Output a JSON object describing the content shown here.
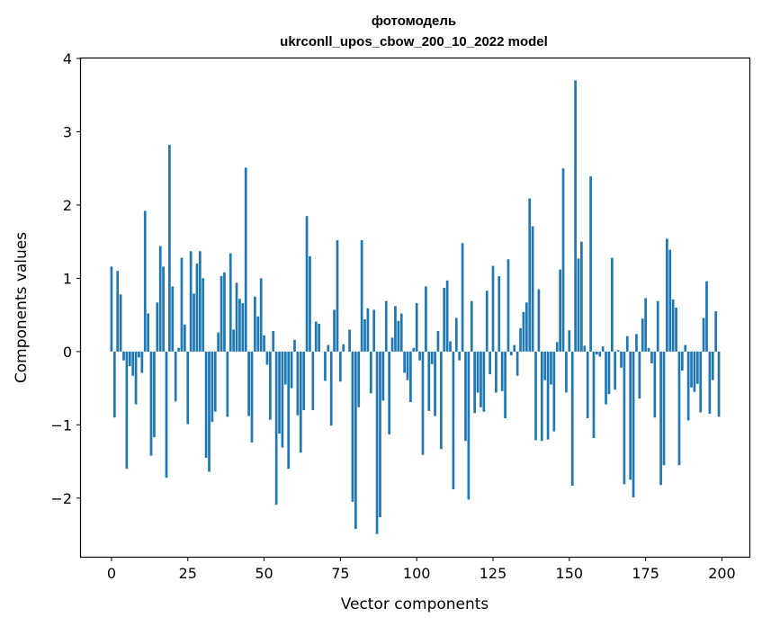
{
  "chart_data": {
    "type": "bar",
    "title": "фотомодель",
    "subtitle": "ukrconll_upos_cbow_200_10_2022 model",
    "xlabel": "Vector components",
    "ylabel": "Components values",
    "xlim": [
      -10,
      209
    ],
    "ylim": [
      -2.8,
      4.0
    ],
    "xticks": [
      0,
      25,
      50,
      75,
      100,
      125,
      150,
      175,
      200
    ],
    "yticks": [
      -2,
      -1,
      0,
      1,
      2,
      3,
      4
    ],
    "xtick_labels": [
      "0",
      "25",
      "50",
      "75",
      "100",
      "125",
      "150",
      "175",
      "200"
    ],
    "ytick_labels": [
      "−2",
      "−1",
      "0",
      "1",
      "2",
      "3",
      "4"
    ],
    "grid": false,
    "bar_color": "#1f77b4",
    "values": [
      1.16,
      -0.9,
      1.1,
      0.78,
      -0.12,
      -1.6,
      -0.2,
      -0.33,
      -0.72,
      -0.08,
      -0.29,
      1.92,
      0.52,
      -1.42,
      -1.17,
      0.67,
      1.44,
      1.16,
      -1.72,
      2.82,
      0.89,
      -0.68,
      0.05,
      1.28,
      0.37,
      -0.99,
      1.37,
      0.79,
      1.2,
      1.37,
      1.0,
      -1.45,
      -1.64,
      -0.96,
      -0.82,
      0.26,
      1.03,
      1.08,
      -0.89,
      1.34,
      0.3,
      0.94,
      0.72,
      0.66,
      2.51,
      -0.88,
      -1.24,
      0.75,
      0.48,
      1.0,
      0.22,
      -0.18,
      -0.93,
      0.28,
      -2.09,
      -1.12,
      -1.31,
      -0.45,
      -1.6,
      -0.5,
      0.16,
      -0.87,
      -1.38,
      -0.8,
      1.85,
      1.3,
      -0.8,
      0.41,
      0.38,
      0.0,
      -0.4,
      0.09,
      -1.01,
      0.57,
      1.52,
      -0.41,
      0.1,
      0.0,
      0.3,
      -2.05,
      -2.42,
      -0.76,
      1.52,
      0.44,
      0.59,
      -0.57,
      0.57,
      -2.49,
      -2.26,
      -0.67,
      0.69,
      -1.13,
      0.19,
      0.62,
      0.42,
      0.52,
      -0.29,
      -0.39,
      -0.69,
      0.05,
      0.66,
      -0.12,
      -1.41,
      0.89,
      -0.81,
      -0.17,
      -0.88,
      0.28,
      -1.33,
      0.87,
      0.97,
      0.14,
      -1.88,
      0.46,
      -0.12,
      1.48,
      -1.22,
      -2.02,
      0.69,
      -0.84,
      -0.56,
      -0.76,
      -0.82,
      0.83,
      -0.31,
      1.17,
      -0.56,
      1.03,
      -0.54,
      -0.91,
      1.26,
      -0.05,
      0.09,
      -0.33,
      0.32,
      0.54,
      0.67,
      2.09,
      1.71,
      -1.21,
      0.85,
      -1.22,
      -0.39,
      -1.2,
      -0.45,
      -1.09,
      0.13,
      1.12,
      2.5,
      -0.56,
      0.29,
      -1.83,
      3.7,
      1.27,
      1.5,
      0.08,
      -0.91,
      2.39,
      -1.18,
      -0.04,
      -0.07,
      0.07,
      -0.72,
      -0.58,
      1.28,
      -0.52,
      0.02,
      -0.22,
      -1.81,
      0.21,
      -1.75,
      -1.99,
      0.24,
      -0.64,
      0.45,
      0.73,
      0.05,
      -0.16,
      -0.9,
      0.69,
      -1.82,
      -1.55,
      1.54,
      1.39,
      0.71,
      0.6,
      -1.55,
      -0.26,
      0.09,
      -0.94,
      -0.49,
      -0.55,
      -0.44,
      -0.83,
      0.46,
      0.96,
      -0.85,
      -0.39,
      0.55,
      -0.89
    ]
  }
}
